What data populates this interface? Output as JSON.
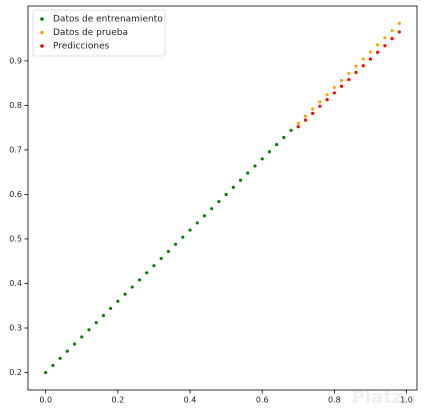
{
  "chart_data": {
    "type": "scatter",
    "xlim": [
      -0.049,
      1.029
    ],
    "ylim": [
      0.1608,
      1.0232
    ],
    "xticks": [
      {
        "value": 0,
        "label": "0.0"
      },
      0.2,
      0.4,
      0.6,
      0.8,
      {
        "value": 1,
        "label": "1.0"
      }
    ],
    "yticks": [
      0.2,
      0.3,
      0.4,
      0.5,
      0.6,
      0.7,
      0.8,
      0.9
    ],
    "grid": false,
    "legend": "upper left",
    "series": [
      {
        "name": "Datos de entrenamiento",
        "color": "#008000",
        "x": [
          0,
          0.02,
          0.04,
          0.06,
          0.08,
          0.1,
          0.12,
          0.14,
          0.16,
          0.18,
          0.2,
          0.22,
          0.24,
          0.26,
          0.28,
          0.3,
          0.32,
          0.34,
          0.36,
          0.38,
          0.4,
          0.42,
          0.44,
          0.46,
          0.48,
          0.5,
          0.52,
          0.54,
          0.56,
          0.58,
          0.6,
          0.62,
          0.64,
          0.66,
          0.68
        ],
        "values": [
          0.2,
          0.216,
          0.232,
          0.248,
          0.264,
          0.28,
          0.296,
          0.312,
          0.328,
          0.344,
          0.36,
          0.376,
          0.392,
          0.408,
          0.424,
          0.44,
          0.456,
          0.472,
          0.488,
          0.504,
          0.52,
          0.536,
          0.552,
          0.568,
          0.584,
          0.6,
          0.616,
          0.632,
          0.648,
          0.664,
          0.68,
          0.696,
          0.712,
          0.728,
          0.744
        ]
      },
      {
        "name": "Datos de prueba",
        "color": "#ffa500",
        "x": [
          0.7,
          0.72,
          0.74,
          0.76,
          0.78,
          0.8,
          0.82,
          0.84,
          0.86,
          0.88,
          0.9,
          0.92,
          0.94,
          0.96,
          0.98
        ],
        "values": [
          0.76,
          0.776,
          0.792,
          0.808,
          0.824,
          0.84,
          0.856,
          0.872,
          0.888,
          0.904,
          0.92,
          0.936,
          0.952,
          0.968,
          0.984
        ]
      },
      {
        "name": "Predicciones",
        "color": "#ff0000",
        "x": [
          0.7,
          0.72,
          0.74,
          0.76,
          0.78,
          0.8,
          0.82,
          0.84,
          0.86,
          0.88,
          0.9,
          0.92,
          0.94,
          0.96,
          0.98
        ],
        "values": [
          0.752,
          0.767,
          0.782,
          0.798,
          0.813,
          0.828,
          0.843,
          0.858,
          0.874,
          0.889,
          0.904,
          0.919,
          0.934,
          0.95,
          0.965
        ]
      }
    ],
    "watermark": "Platzi"
  }
}
